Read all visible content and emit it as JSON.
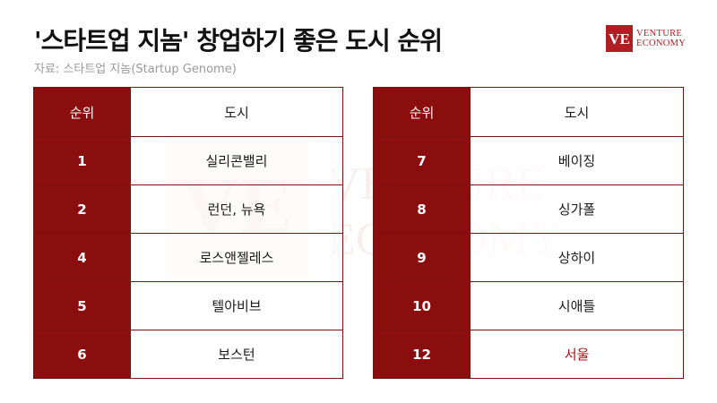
{
  "header": {
    "title": "'스타트업 지놈' 창업하기 좋은 도시 순위",
    "subtitle": "자료: 스타트업 지놈(Startup Genome)"
  },
  "logo": {
    "mark": "VE",
    "line1": "VENTURE",
    "line2": "ECONOMY",
    "color": "#b01e23"
  },
  "watermark": {
    "mark": "VE",
    "line1": "VENTURE",
    "line2": "ECONOMY"
  },
  "colors": {
    "rank_bg": "#8b0e0e",
    "highlight_text": "#a11616"
  },
  "tables": {
    "left": {
      "header": {
        "rank": "순위",
        "city": "도시"
      },
      "rows": [
        {
          "rank": "1",
          "city": "실리콘밸리"
        },
        {
          "rank": "2",
          "city": "런던, 뉴욕"
        },
        {
          "rank": "4",
          "city": "로스앤젤레스"
        },
        {
          "rank": "5",
          "city": "텔아비브"
        },
        {
          "rank": "6",
          "city": "보스턴"
        }
      ]
    },
    "right": {
      "header": {
        "rank": "순위",
        "city": "도시"
      },
      "rows": [
        {
          "rank": "7",
          "city": "베이징"
        },
        {
          "rank": "8",
          "city": "싱가폴"
        },
        {
          "rank": "9",
          "city": "상하이"
        },
        {
          "rank": "10",
          "city": "시애틀"
        },
        {
          "rank": "12",
          "city": "서울",
          "highlight": true
        }
      ]
    }
  }
}
